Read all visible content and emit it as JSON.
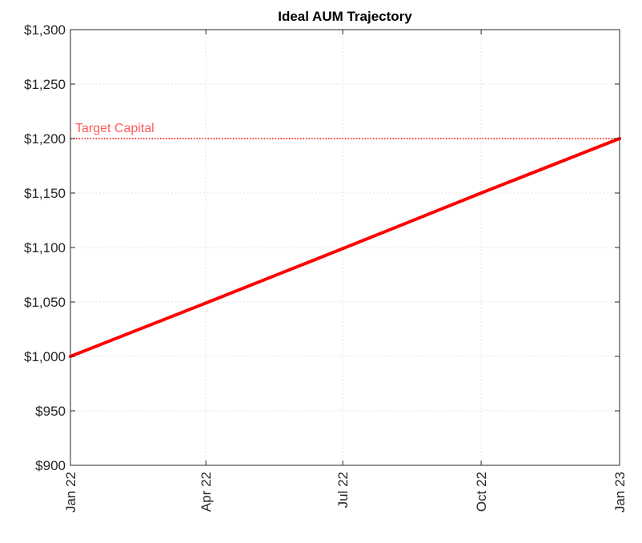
{
  "chart_data": {
    "type": "line",
    "title": "Ideal AUM Trajectory",
    "xlabel": "",
    "ylabel": "",
    "x_range": [
      "2022-01-01",
      "2023-01-01"
    ],
    "x_ticks": [
      {
        "date": "2022-01-01",
        "label": "Jan 22"
      },
      {
        "date": "2022-04-01",
        "label": "Apr 22"
      },
      {
        "date": "2022-07-01",
        "label": "Jul 22"
      },
      {
        "date": "2022-10-01",
        "label": "Oct 22"
      },
      {
        "date": "2023-01-01",
        "label": "Jan 23"
      }
    ],
    "ylim": [
      900,
      1300
    ],
    "y_ticks": [
      {
        "value": 900,
        "label": "$900"
      },
      {
        "value": 950,
        "label": "$950"
      },
      {
        "value": 1000,
        "label": "$1,000"
      },
      {
        "value": 1050,
        "label": "$1,050"
      },
      {
        "value": 1100,
        "label": "$1,100"
      },
      {
        "value": 1150,
        "label": "$1,150"
      },
      {
        "value": 1200,
        "label": "$1,200"
      },
      {
        "value": 1250,
        "label": "$1,250"
      },
      {
        "value": 1300,
        "label": "$1,300"
      }
    ],
    "grid": true,
    "series": [
      {
        "color": "#ff0000",
        "points": [
          {
            "x": "2022-01-01",
            "y": 1000
          },
          {
            "x": "2022-04-01",
            "y": 1049
          },
          {
            "x": "2022-07-01",
            "y": 1099
          },
          {
            "x": "2022-10-01",
            "y": 1150
          },
          {
            "x": "2023-01-01",
            "y": 1200
          }
        ]
      }
    ],
    "reference_line": {
      "y": 1200,
      "style": "dotted",
      "color": "#ff0000"
    },
    "annotations": [
      {
        "text": "Target Capital",
        "x": "2022-01-01",
        "y": 1200,
        "color": "#ff5a5a"
      }
    ]
  }
}
